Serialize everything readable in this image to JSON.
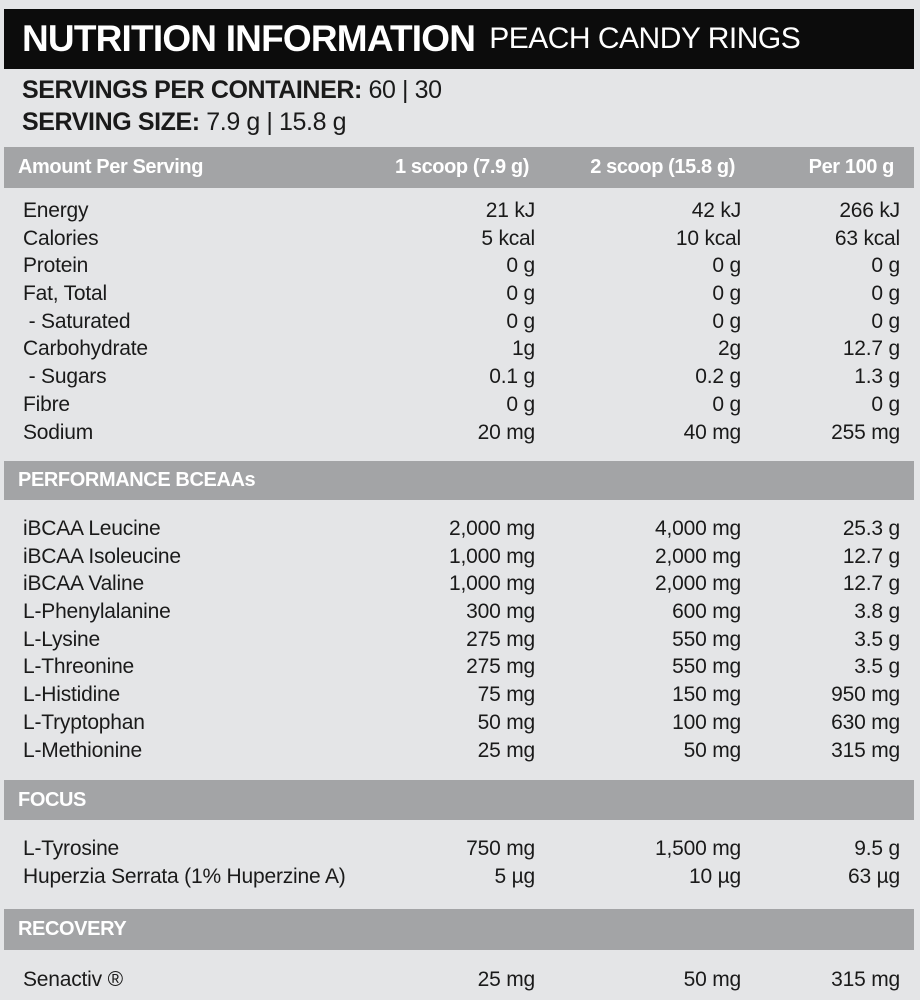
{
  "title": {
    "main": "NUTRITION INFORMATION",
    "flavour": "PEACH CANDY RINGS"
  },
  "servings_per_container": {
    "label": "SERVINGS PER CONTAINER:",
    "value": "60 | 30"
  },
  "serving_size": {
    "label": "SERVING SIZE:",
    "value": "7.9 g | 15.8 g"
  },
  "header": {
    "label": "Amount Per Serving",
    "col1": "1 scoop (7.9 g)",
    "col2": "2 scoop (15.8 g)",
    "col3": "Per 100 g"
  },
  "nutrients": [
    {
      "name": "Energy",
      "v1": "21 kJ",
      "v2": "42 kJ",
      "v3": "266 kJ"
    },
    {
      "name": "Calories",
      "v1": "5 kcal",
      "v2": "10 kcal",
      "v3": "63 kcal"
    },
    {
      "name": "Protein",
      "v1": "0 g",
      "v2": "0 g",
      "v3": "0 g"
    },
    {
      "name": "Fat, Total",
      "v1": "0 g",
      "v2": "0 g",
      "v3": "0 g"
    },
    {
      "name": " - Saturated",
      "v1": "0 g",
      "v2": "0 g",
      "v3": "0 g"
    },
    {
      "name": "Carbohydrate",
      "v1": "1g",
      "v2": "2g",
      "v3": "12.7 g"
    },
    {
      "name": " - Sugars",
      "v1": "0.1 g",
      "v2": "0.2 g",
      "v3": "1.3 g"
    },
    {
      "name": "Fibre",
      "v1": "0 g",
      "v2": "0 g",
      "v3": "0 g"
    },
    {
      "name": "Sodium",
      "v1": "20 mg",
      "v2": "40 mg",
      "v3": "255 mg"
    }
  ],
  "sections": [
    {
      "title": "PERFORMANCE BCEAAs",
      "rows": [
        {
          "name": "iBCAA Leucine",
          "v1": "2,000 mg",
          "v2": "4,000 mg",
          "v3": "25.3 g"
        },
        {
          "name": "iBCAA Isoleucine",
          "v1": "1,000 mg",
          "v2": "2,000 mg",
          "v3": "12.7 g"
        },
        {
          "name": "iBCAA Valine",
          "v1": "1,000 mg",
          "v2": "2,000 mg",
          "v3": "12.7 g"
        },
        {
          "name": "L-Phenylalanine",
          "v1": "300 mg",
          "v2": "600 mg",
          "v3": "3.8 g"
        },
        {
          "name": "L-Lysine",
          "v1": "275 mg",
          "v2": "550 mg",
          "v3": "3.5 g"
        },
        {
          "name": "L-Threonine",
          "v1": "275 mg",
          "v2": "550 mg",
          "v3": "3.5 g"
        },
        {
          "name": "L-Histidine",
          "v1": "75 mg",
          "v2": "150 mg",
          "v3": "950 mg"
        },
        {
          "name": "L-Tryptophan",
          "v1": "50 mg",
          "v2": "100 mg",
          "v3": "630 mg"
        },
        {
          "name": "L-Methionine",
          "v1": "25 mg",
          "v2": "50 mg",
          "v3": "315 mg"
        }
      ]
    },
    {
      "title": "FOCUS",
      "rows": [
        {
          "name": "L-Tyrosine",
          "v1": "750 mg",
          "v2": "1,500 mg",
          "v3": "9.5 g"
        },
        {
          "name": "Huperzia Serrata (1% Huperzine A)",
          "v1": "5 µg",
          "v2": "10 µg",
          "v3": "63 µg"
        }
      ]
    },
    {
      "title": "RECOVERY",
      "rows": [
        {
          "name": "Senactiv ®",
          "v1": "25 mg",
          "v2": "50 mg",
          "v3": "315 mg"
        }
      ]
    }
  ]
}
